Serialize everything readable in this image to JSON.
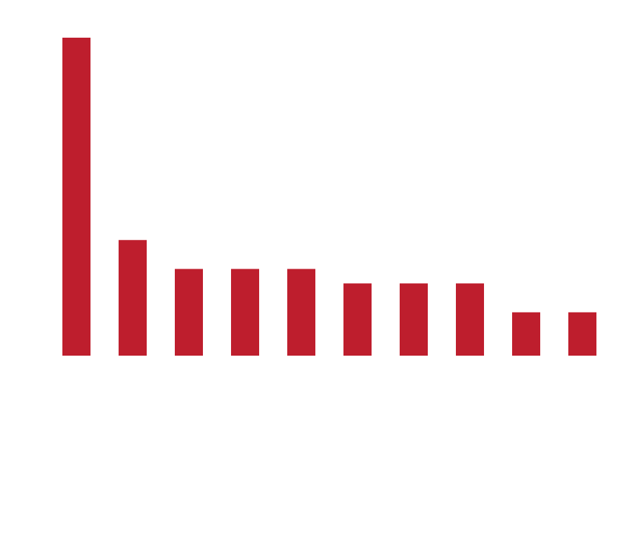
{
  "chart_data": {
    "type": "bar",
    "values": [
      22,
      8,
      6,
      6,
      6,
      5,
      5,
      5,
      3,
      3
    ],
    "color": "#be1e2d"
  }
}
